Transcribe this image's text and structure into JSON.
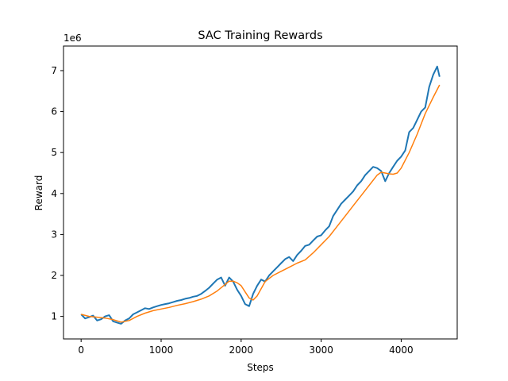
{
  "chart_data": {
    "type": "line",
    "title": "SAC Training Rewards",
    "xlabel": "Steps",
    "ylabel": "Reward",
    "y_multiplier_label": "1e6",
    "xlim": [
      -220,
      4700
    ],
    "ylim": [
      0.45,
      7.6
    ],
    "x_ticks": [
      0,
      1000,
      2000,
      3000,
      4000
    ],
    "x_tick_labels": [
      "0",
      "1000",
      "2000",
      "3000",
      "4000"
    ],
    "y_ticks": [
      1,
      2,
      3,
      4,
      5,
      6,
      7
    ],
    "y_tick_labels": [
      "1",
      "2",
      "3",
      "4",
      "5",
      "6",
      "7"
    ],
    "grid": false,
    "series": [
      {
        "color": "#1f77b4",
        "x": [
          0,
          50,
          100,
          150,
          200,
          250,
          300,
          350,
          400,
          450,
          500,
          550,
          600,
          650,
          700,
          750,
          800,
          850,
          900,
          950,
          1000,
          1050,
          1100,
          1150,
          1200,
          1250,
          1300,
          1350,
          1400,
          1450,
          1500,
          1550,
          1600,
          1650,
          1700,
          1750,
          1800,
          1850,
          1900,
          1950,
          2000,
          2050,
          2100,
          2150,
          2200,
          2250,
          2300,
          2350,
          2400,
          2450,
          2500,
          2550,
          2600,
          2650,
          2700,
          2750,
          2800,
          2850,
          2900,
          2950,
          3000,
          3050,
          3100,
          3150,
          3200,
          3250,
          3300,
          3350,
          3400,
          3450,
          3500,
          3550,
          3600,
          3650,
          3700,
          3750,
          3800,
          3850,
          3900,
          3950,
          4000,
          4050,
          4100,
          4150,
          4200,
          4250,
          4300,
          4350,
          4400,
          4450,
          4480
        ],
        "values": [
          1.05,
          0.95,
          0.98,
          1.02,
          0.9,
          0.93,
          1.0,
          1.03,
          0.88,
          0.85,
          0.82,
          0.9,
          0.95,
          1.05,
          1.1,
          1.15,
          1.2,
          1.18,
          1.22,
          1.25,
          1.28,
          1.3,
          1.32,
          1.35,
          1.38,
          1.4,
          1.43,
          1.45,
          1.48,
          1.5,
          1.55,
          1.62,
          1.7,
          1.8,
          1.9,
          1.95,
          1.75,
          1.95,
          1.85,
          1.65,
          1.5,
          1.3,
          1.25,
          1.55,
          1.75,
          1.9,
          1.85,
          2.0,
          2.1,
          2.2,
          2.3,
          2.4,
          2.45,
          2.35,
          2.5,
          2.6,
          2.72,
          2.75,
          2.85,
          2.95,
          2.98,
          3.1,
          3.2,
          3.45,
          3.6,
          3.75,
          3.85,
          3.95,
          4.05,
          4.2,
          4.3,
          4.45,
          4.55,
          4.65,
          4.62,
          4.55,
          4.3,
          4.5,
          4.65,
          4.8,
          4.9,
          5.05,
          5.5,
          5.6,
          5.8,
          6.0,
          6.1,
          6.6,
          6.9,
          7.1,
          6.85
        ]
      },
      {
        "color": "#ff7f0e",
        "x": [
          0,
          100,
          200,
          300,
          400,
          500,
          600,
          700,
          800,
          900,
          1000,
          1100,
          1200,
          1300,
          1400,
          1500,
          1600,
          1700,
          1800,
          1850,
          1900,
          1950,
          2000,
          2050,
          2100,
          2150,
          2200,
          2300,
          2400,
          2500,
          2600,
          2700,
          2800,
          2900,
          3000,
          3100,
          3200,
          3300,
          3400,
          3500,
          3600,
          3700,
          3750,
          3800,
          3850,
          3900,
          3950,
          4000,
          4100,
          4200,
          4300,
          4400,
          4480
        ],
        "values": [
          1.05,
          1.0,
          0.98,
          0.96,
          0.92,
          0.86,
          0.9,
          1.0,
          1.08,
          1.14,
          1.18,
          1.22,
          1.27,
          1.31,
          1.36,
          1.42,
          1.5,
          1.62,
          1.78,
          1.86,
          1.86,
          1.82,
          1.75,
          1.6,
          1.45,
          1.4,
          1.5,
          1.85,
          2.0,
          2.1,
          2.2,
          2.3,
          2.38,
          2.55,
          2.75,
          2.95,
          3.2,
          3.45,
          3.7,
          3.95,
          4.2,
          4.45,
          4.52,
          4.5,
          4.48,
          4.47,
          4.5,
          4.62,
          5.0,
          5.45,
          5.95,
          6.35,
          6.65
        ]
      }
    ]
  }
}
